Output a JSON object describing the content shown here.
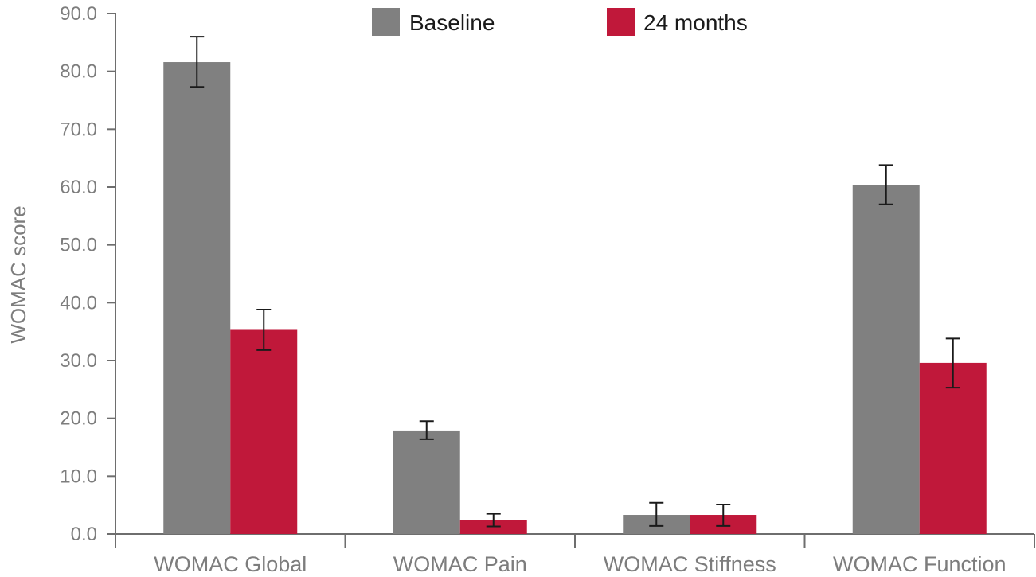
{
  "chart_data": {
    "type": "bar",
    "title": "",
    "xlabel": "",
    "ylabel": "WOMAC score",
    "ylim": [
      0,
      90
    ],
    "yticks": [
      "0.0",
      "10.0",
      "20.0",
      "30.0",
      "40.0",
      "50.0",
      "60.0",
      "70.0",
      "80.0",
      "90.0"
    ],
    "categories": [
      "WOMAC Global",
      "WOMAC Pain",
      "WOMAC Stiffness",
      "WOMAC Function"
    ],
    "series": [
      {
        "name": "Baseline",
        "color": "#808080",
        "values": [
          81.6,
          17.9,
          3.3,
          60.4
        ],
        "error_low": [
          77.3,
          16.4,
          1.4,
          57.0
        ],
        "error_high": [
          86.0,
          19.5,
          5.4,
          63.8
        ]
      },
      {
        "name": "24 months",
        "color": "#c0183a",
        "values": [
          35.3,
          2.4,
          3.3,
          29.6
        ],
        "error_low": [
          31.8,
          1.3,
          1.4,
          25.3
        ],
        "error_high": [
          38.8,
          3.5,
          5.1,
          33.8
        ]
      }
    ],
    "legend_position": "top-center",
    "grid": false
  }
}
